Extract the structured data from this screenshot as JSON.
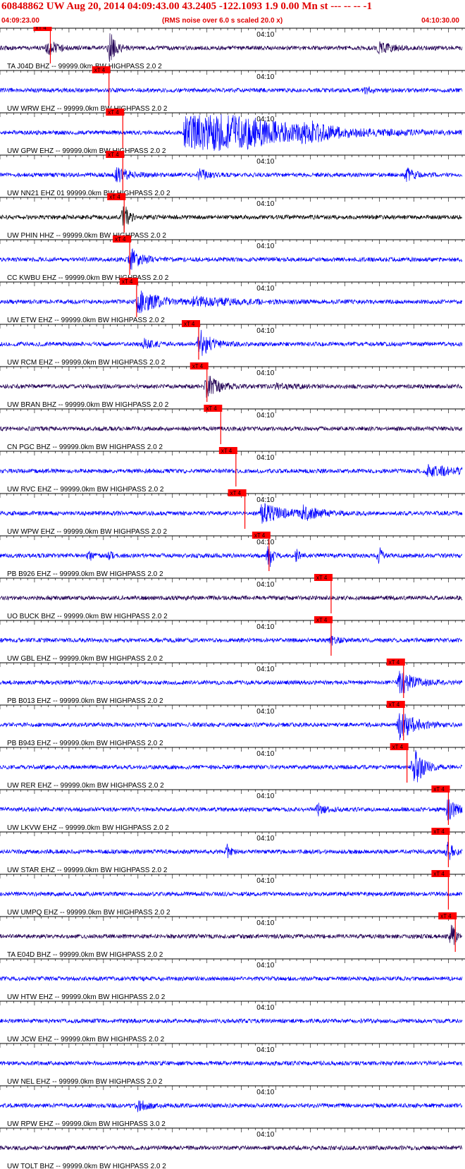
{
  "header": {
    "title": "60848862 UW Aug 20, 2014 04:09:43.00   43.2405 -122.1093  1.9 0.00 Mn st --- -- --  -1",
    "start_time": "04:09:23.00",
    "note": "(RMS noise over 6.0 s scaled 20.0 x)",
    "end_time": "04:10:30.00"
  },
  "colors": {
    "red": "#ff0000",
    "blue": "#0000ff",
    "navy": "#220055",
    "black": "#000000"
  },
  "chart_data": {
    "type": "line",
    "x_unit": "seconds after 04:09:23.00",
    "x_range": [
      0,
      67
    ],
    "minute_tick_label": "04:10",
    "minute_tick_x": 37,
    "pick_label": "xT 4",
    "channels": [
      {
        "label": "TA J04D BHZ -- 99999.0km BW  HIGHPASS  2.0  2",
        "color": "navy",
        "pick": 7.3,
        "events": [
          [
            7,
            0.8,
            1.2
          ],
          [
            16,
            1.6,
            0.8
          ],
          [
            55,
            0.5,
            2
          ]
        ]
      },
      {
        "label": "UW WRW EHZ -- 99999.0km BW  HIGHPASS  2.0  2",
        "color": "blue",
        "pick": 15.8,
        "events": [
          [
            53,
            0.3,
            1
          ]
        ]
      },
      {
        "label": "UW GPW EHZ -- 99999.0km BW  HIGHPASS  2.0  2",
        "color": "blue",
        "pick": 17.8,
        "events": [
          [
            27,
            4,
            9
          ],
          [
            44,
            1,
            2
          ]
        ]
      },
      {
        "label": "UW NN21 EHZ 01 99999.0km BW  HIGHPASS  2.0  2",
        "color": "blue",
        "pick": 17.8,
        "events": [
          [
            17,
            0.8,
            1.5
          ],
          [
            29,
            0.6,
            1
          ],
          [
            59,
            0.7,
            1
          ]
        ]
      },
      {
        "label": "UW PHIN HHZ -- 99999.0km BW  HIGHPASS  2.0  2",
        "color": "black",
        "pick": 18.0,
        "events": [
          [
            18,
            1.6,
            0.6
          ]
        ]
      },
      {
        "label": "CC KWBU EHZ -- 99999.0km BW  HIGHPASS  2.0  2",
        "color": "blue",
        "pick": 18.8,
        "events": [
          [
            19,
            1,
            1.5
          ]
        ]
      },
      {
        "label": "UW ETW EHZ -- 99999.0km BW  HIGHPASS  2.0  2",
        "color": "blue",
        "pick": 19.8,
        "events": [
          [
            20,
            1.1,
            3
          ],
          [
            28,
            0.4,
            6
          ]
        ]
      },
      {
        "label": "UW RCM EHZ -- 99999.0km BW  HIGHPASS  2.0  2",
        "color": "blue",
        "pick": 28.8,
        "events": [
          [
            21,
            0.5,
            1
          ],
          [
            29,
            1.4,
            1.5
          ]
        ]
      },
      {
        "label": "UW BRAN BHZ -- 99999.0km BW  HIGHPASS  2.0  2",
        "color": "navy",
        "pick": 30.0,
        "events": [
          [
            30,
            1.3,
            1.5
          ],
          [
            40,
            0.2,
            3
          ]
        ]
      },
      {
        "label": "CN PGC BHZ -- 99999.0km BW  HIGHPASS  2.0  2",
        "color": "navy",
        "pick": 32.0,
        "events": []
      },
      {
        "label": "UW RVC EHZ -- 99999.0km BW  HIGHPASS  2.0  2",
        "color": "blue",
        "pick": 34.2,
        "events": [
          [
            62,
            0.5,
            5
          ]
        ]
      },
      {
        "label": "UW WPW EHZ -- 99999.0km BW  HIGHPASS  2.0  2",
        "color": "blue",
        "pick": 35.5,
        "events": [
          [
            38,
            1,
            3
          ],
          [
            44,
            0.6,
            2
          ]
        ]
      },
      {
        "label": "PB B926 EHZ -- 99999.0km BW  HIGHPASS  2.0  2",
        "color": "blue",
        "pick": 39.0,
        "events": [
          [
            13,
            0.6,
            0.3
          ],
          [
            16,
            0.5,
            0.3
          ],
          [
            39,
            1.5,
            0.4
          ],
          [
            43,
            0.6,
            0.4
          ],
          [
            55,
            0.8,
            0.4
          ]
        ]
      },
      {
        "label": "UO BUCK BHZ -- 99999.0km BW  HIGHPASS  2.0  2",
        "color": "navy",
        "pick": 48.0,
        "events": []
      },
      {
        "label": "UW GBL EHZ -- 99999.0km BW  HIGHPASS  2.0  2",
        "color": "blue",
        "pick": 48.0,
        "events": [
          [
            48,
            0.4,
            1
          ]
        ]
      },
      {
        "label": "PB B013 EHZ -- 99999.0km BW  HIGHPASS  2.0  2",
        "color": "blue",
        "pick": 58.5,
        "events": [
          [
            58,
            1.2,
            2
          ]
        ]
      },
      {
        "label": "PB B943 EHZ -- 99999.0km BW  HIGHPASS  2.0  2",
        "color": "blue",
        "pick": 58.5,
        "events": [
          [
            58,
            1.5,
            2
          ]
        ]
      },
      {
        "label": "UW RER EHZ -- 99999.0km BW  HIGHPASS  2.0  2",
        "color": "blue",
        "pick": 59.0,
        "events": [
          [
            60,
            2.2,
            1.2
          ]
        ]
      },
      {
        "label": "UW LKVW EHZ -- 99999.0km BW  HIGHPASS  2.0  2",
        "color": "blue",
        "pick": 65.0,
        "events": [
          [
            46,
            0.6,
            1
          ],
          [
            65,
            1.2,
            1
          ]
        ]
      },
      {
        "label": "UW STAR EHZ -- 99999.0km BW  HIGHPASS  2.0  2",
        "color": "blue",
        "pick": 65.0,
        "events": [
          [
            33,
            0.8,
            0.4
          ],
          [
            65,
            1.1,
            0.6
          ]
        ]
      },
      {
        "label": "UW UMPQ EHZ -- 99999.0km BW  HIGHPASS  2.0  2",
        "color": "blue",
        "pick": 65.0,
        "events": []
      },
      {
        "label": "TA E04D BHZ -- 99999.0km BW  HIGHPASS  2.0  2",
        "color": "navy",
        "pick": 66.0,
        "events": [
          [
            65.5,
            1.3,
            0.5
          ]
        ]
      },
      {
        "label": "UW HTW EHZ -- 99999.0km BW  HIGHPASS  2.0  2",
        "color": "blue",
        "pick": null,
        "events": []
      },
      {
        "label": "UW JCW EHZ -- 99999.0km BW  HIGHPASS  2.0  2",
        "color": "blue",
        "pick": null,
        "events": []
      },
      {
        "label": "UW NEL EHZ -- 99999.0km BW  HIGHPASS  2.0  2",
        "color": "blue",
        "pick": null,
        "events": []
      },
      {
        "label": "UW RPW EHZ -- 99999.0km BW  HIGHPASS  3.0  2",
        "color": "blue",
        "pick": null,
        "events": [
          [
            20,
            0.5,
            1.5
          ]
        ]
      },
      {
        "label": "UW TOLT BHZ -- 99999.0km BW  HIGHPASS  2.0  2",
        "color": "navy",
        "pick": null,
        "events": []
      }
    ]
  }
}
